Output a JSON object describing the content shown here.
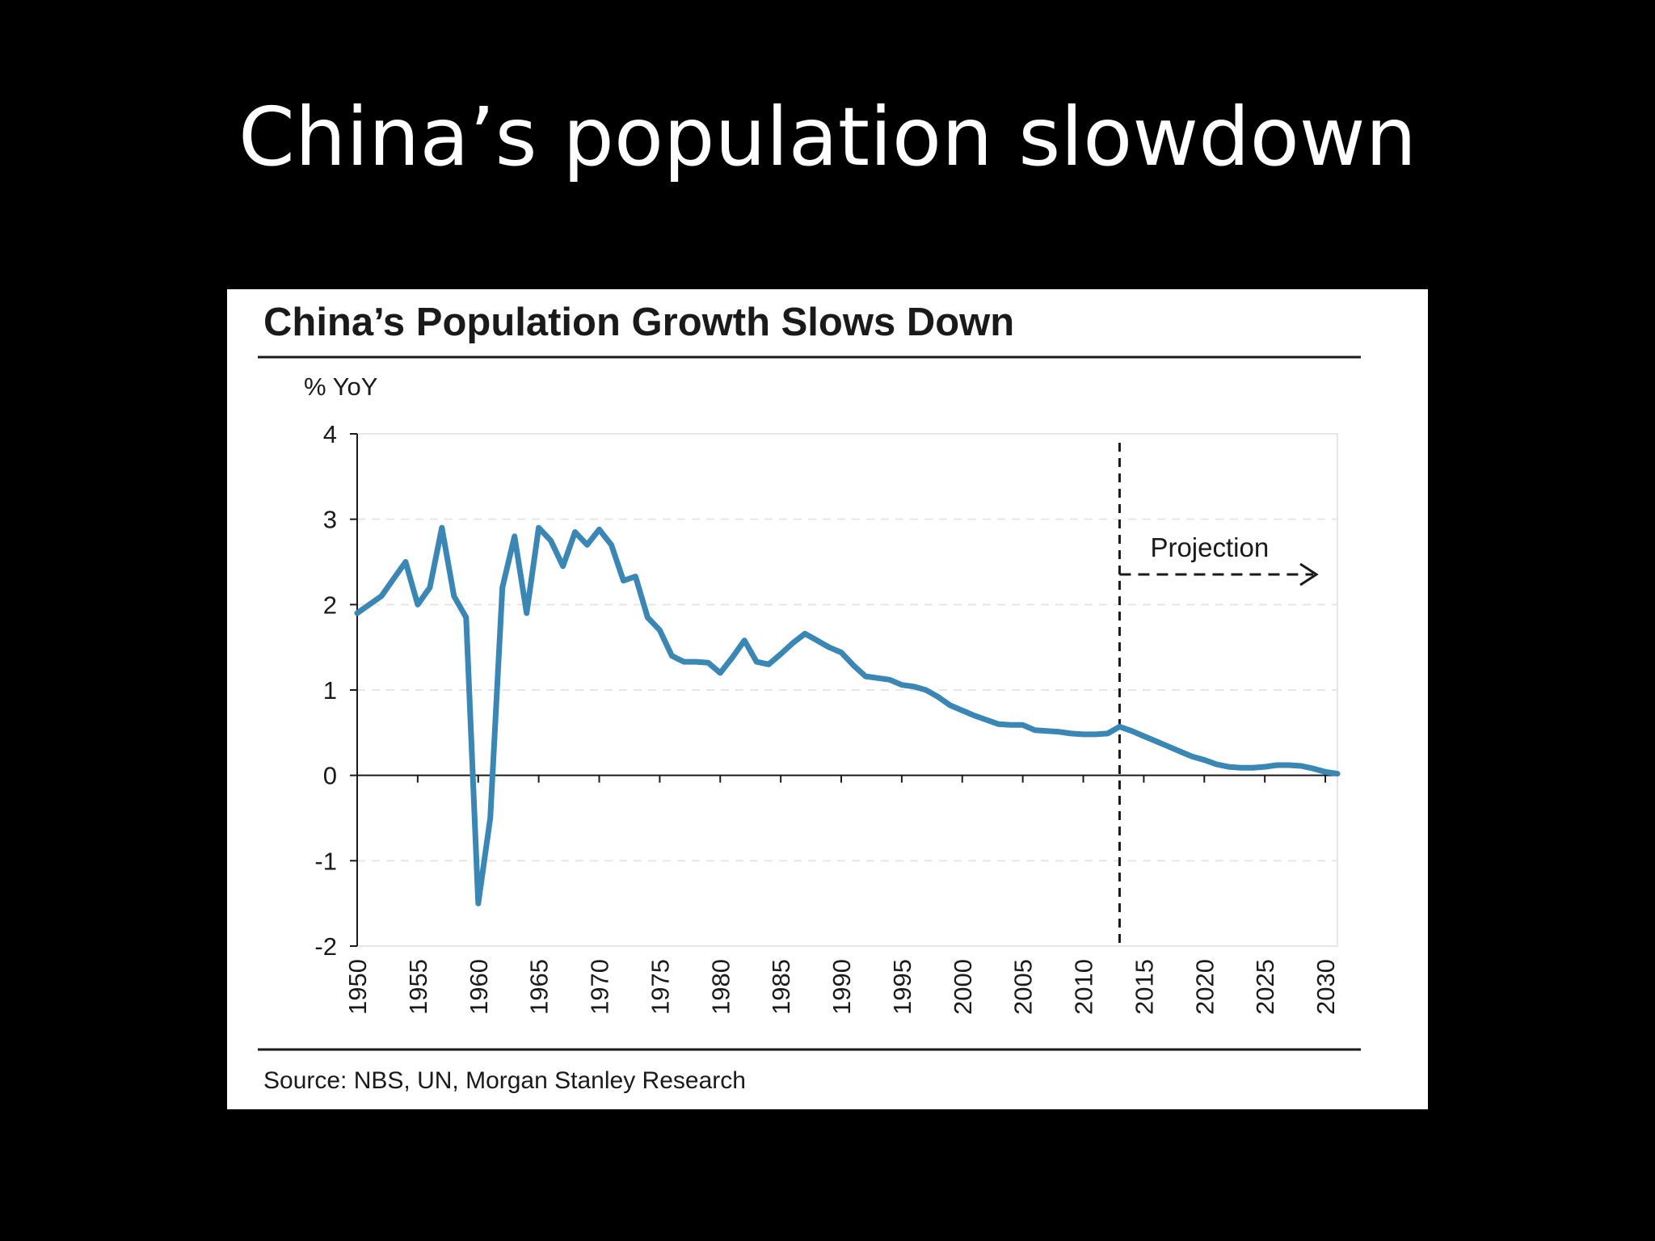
{
  "slide": {
    "title": "China’s population slowdown"
  },
  "colors": {
    "background": "#000000",
    "panel": "#ffffff",
    "series": "#3a86b4",
    "text": "#1a1a1a",
    "grid": "#e6e6e6"
  },
  "chart_data": {
    "type": "line",
    "title": "China’s Population Growth Slows Down",
    "unit_label": "% YoY",
    "source": "Source: NBS, UN, Morgan Stanley Research",
    "xlim": [
      1950,
      2031
    ],
    "ylim": [
      -2,
      4
    ],
    "x_ticks": [
      "1950",
      "1955",
      "1960",
      "1965",
      "1970",
      "1975",
      "1980",
      "1985",
      "1990",
      "1995",
      "2000",
      "2005",
      "2010",
      "2015",
      "2020",
      "2025",
      "2030"
    ],
    "y_ticks": [
      "4",
      "3",
      "2",
      "1",
      "0",
      "-1",
      "-2"
    ],
    "grid": "horizontal dashed",
    "projection": {
      "label": "Projection",
      "start_year": 2013
    },
    "series": [
      {
        "x": [
          1950,
          1951,
          1952,
          1953,
          1954,
          1955,
          1956,
          1957,
          1958,
          1959,
          1960,
          1961,
          1962,
          1963,
          1964,
          1965,
          1966,
          1967,
          1968,
          1969,
          1970,
          1971,
          1972,
          1973,
          1974,
          1975,
          1976,
          1977,
          1978,
          1979,
          1980,
          1981,
          1982,
          1983,
          1984,
          1985,
          1986,
          1987,
          1988,
          1989,
          1990,
          1991,
          1992,
          1993,
          1994,
          1995,
          1996,
          1997,
          1998,
          1999,
          2000,
          2001,
          2002,
          2003,
          2004,
          2005,
          2006,
          2007,
          2008,
          2009,
          2010,
          2011,
          2012,
          2013,
          2014,
          2015,
          2016,
          2017,
          2018,
          2019,
          2020,
          2021,
          2022,
          2023,
          2024,
          2025,
          2026,
          2027,
          2028,
          2029,
          2030,
          2031
        ],
        "y": [
          1.9,
          2.0,
          2.1,
          2.3,
          2.5,
          2.0,
          2.2,
          2.9,
          2.1,
          1.85,
          -1.5,
          -0.5,
          2.2,
          2.8,
          1.9,
          2.9,
          2.75,
          2.45,
          2.85,
          2.7,
          2.88,
          2.7,
          2.28,
          2.33,
          1.85,
          1.7,
          1.4,
          1.33,
          1.33,
          1.32,
          1.2,
          1.38,
          1.58,
          1.33,
          1.3,
          1.42,
          1.55,
          1.66,
          1.58,
          1.5,
          1.44,
          1.29,
          1.16,
          1.14,
          1.12,
          1.06,
          1.04,
          1.0,
          0.92,
          0.82,
          0.76,
          0.7,
          0.65,
          0.6,
          0.59,
          0.59,
          0.53,
          0.52,
          0.51,
          0.49,
          0.48,
          0.48,
          0.49,
          0.57,
          0.52,
          0.46,
          0.4,
          0.34,
          0.28,
          0.22,
          0.18,
          0.13,
          0.1,
          0.09,
          0.09,
          0.1,
          0.12,
          0.12,
          0.11,
          0.08,
          0.04,
          0.02
        ]
      }
    ]
  }
}
